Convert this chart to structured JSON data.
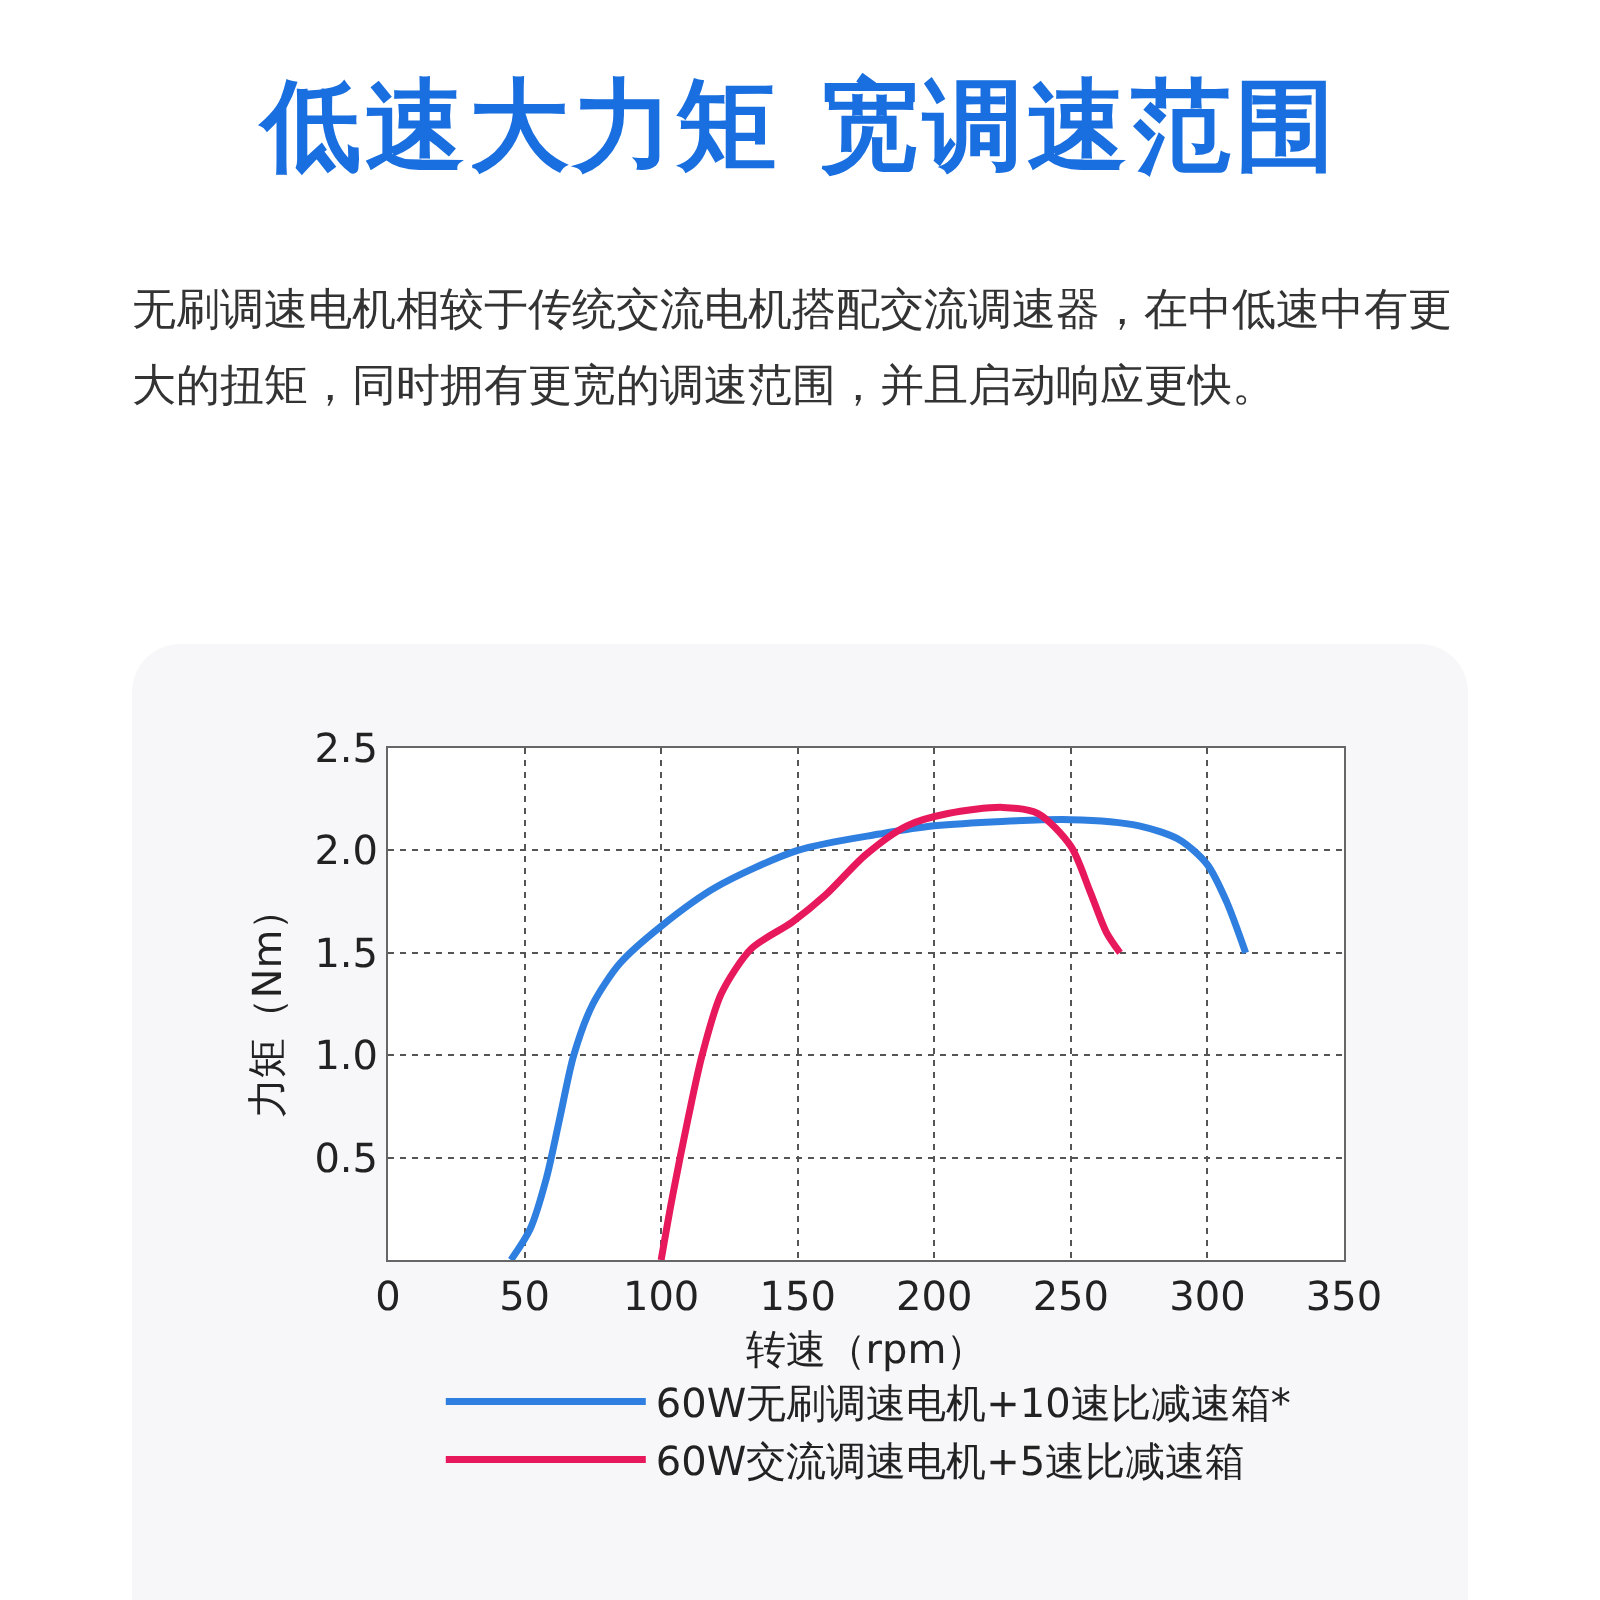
{
  "chart_data": {
    "type": "line",
    "title": "低速大力矩 宽调速范围",
    "subtitle": "无刷调速电机相较于传统交流电机搭配交流调速器，在中低速中有更大的扭矩，同时拥有更宽的调速范围，并且启动响应更快。",
    "xlabel": "转速（rpm）",
    "ylabel": "力矩（Nm）",
    "xlim": [
      0,
      350
    ],
    "xticks": [
      0,
      50,
      100,
      150,
      200,
      250,
      300,
      350
    ],
    "ylim": [
      0,
      2.5
    ],
    "yticks": [
      {
        "value": 0.5,
        "label": "0.5"
      },
      {
        "value": 1,
        "label": "1.0"
      },
      {
        "value": 1.5,
        "label": "1.5"
      },
      {
        "value": 2,
        "label": "2.0"
      },
      {
        "value": 2.5,
        "label": "2.5"
      }
    ],
    "grid": true,
    "legend": "bottom",
    "marker": "none",
    "line_style": "solid",
    "series": [
      {
        "name": "60W无刷调速电机+10速比减速箱*",
        "color": "#2f7fe0",
        "x": [
          45,
          52,
          58,
          63,
          68,
          75,
          85,
          100,
          120,
          150,
          180,
          200,
          250,
          275,
          290,
          300,
          307,
          314
        ],
        "values": [
          0,
          0.15,
          0.4,
          0.7,
          1.0,
          1.25,
          1.45,
          1.63,
          1.82,
          2.0,
          2.08,
          2.12,
          2.15,
          2.12,
          2.05,
          1.93,
          1.75,
          1.5
        ]
      },
      {
        "name": "60W交流调速电机+5速比减速箱",
        "color": "#e8185c",
        "x": [
          100,
          104,
          110,
          115,
          122,
          133,
          148,
          160,
          175,
          190,
          205,
          225,
          238,
          250,
          257,
          263,
          268
        ],
        "values": [
          0,
          0.3,
          0.7,
          1.0,
          1.3,
          1.52,
          1.65,
          1.78,
          1.98,
          2.12,
          2.18,
          2.21,
          2.18,
          2.02,
          1.8,
          1.6,
          1.5
        ]
      }
    ]
  }
}
